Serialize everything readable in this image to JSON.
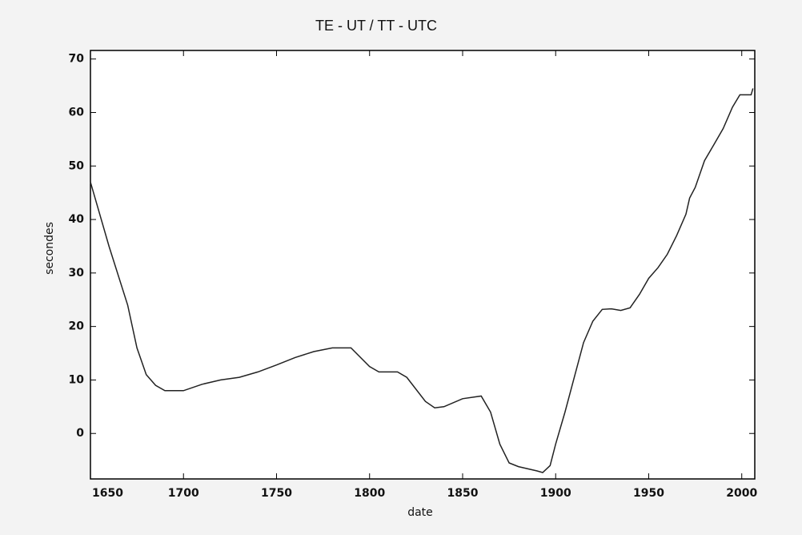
{
  "chart_data": {
    "type": "line",
    "title": "TE - UT  /  TT - UTC",
    "xlabel": "date",
    "ylabel": "secondes",
    "x": [
      1650,
      1660,
      1670,
      1675,
      1680,
      1685,
      1690,
      1700,
      1710,
      1720,
      1730,
      1740,
      1750,
      1760,
      1770,
      1780,
      1790,
      1800,
      1805,
      1815,
      1820,
      1830,
      1835,
      1840,
      1850,
      1860,
      1865,
      1870,
      1875,
      1880,
      1890,
      1893,
      1897,
      1900,
      1905,
      1910,
      1915,
      1920,
      1925,
      1930,
      1935,
      1940,
      1945,
      1950,
      1955,
      1960,
      1965,
      1970,
      1972,
      1975,
      1980,
      1985,
      1990,
      1995,
      1999,
      2005,
      2006
    ],
    "series": [
      {
        "name": "TE - UT",
        "color": "#222222",
        "values": [
          47,
          35,
          24,
          16,
          11,
          9,
          8,
          8,
          9.2,
          10,
          10.5,
          11.5,
          12.8,
          14.2,
          15.3,
          16,
          16,
          12.5,
          11.5,
          11.5,
          10.5,
          6,
          4.8,
          5,
          6.5,
          7,
          4,
          -2,
          -5.5,
          -6.2,
          -7,
          -7.3,
          -6,
          -2,
          4,
          10.5,
          17,
          21,
          23.2,
          23.3,
          23,
          23.5,
          26,
          29,
          31,
          33.5,
          37,
          41,
          44,
          46,
          51,
          54,
          57,
          61,
          63.3,
          63.3,
          64.5
        ]
      }
    ],
    "xlim": [
      1650,
      2007
    ],
    "ylim": [
      -8.5,
      71.6
    ],
    "xticks": [
      1650,
      1700,
      1750,
      1800,
      1850,
      1900,
      1950,
      2000
    ],
    "yticks": [
      0,
      10,
      20,
      30,
      40,
      50,
      60,
      70
    ]
  }
}
